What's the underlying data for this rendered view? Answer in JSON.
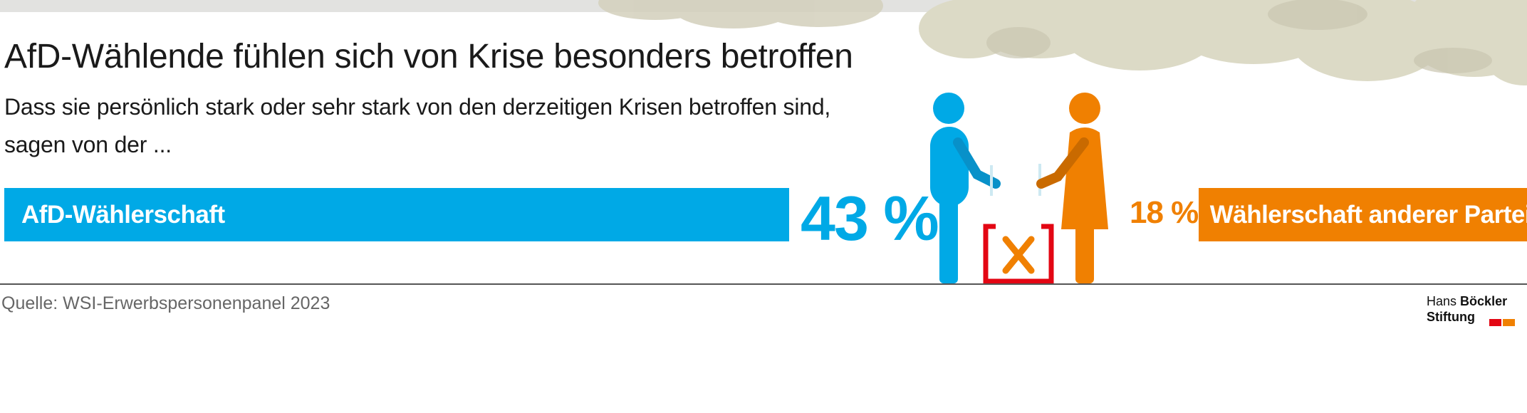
{
  "header": {
    "title": "AfD-Wählende fühlen sich von Krise besonders betroffen",
    "subtitle": "Dass sie persönlich stark oder sehr stark von den derzeitigen Krisen betroffen sind, sagen von der ..."
  },
  "footer": {
    "source": "Quelle: WSI-Erwerbspersonenpanel 2023",
    "logo_line1_a": "Hans",
    "logo_line1_b": "Böckler",
    "logo_line2": "Stiftung"
  },
  "colors": {
    "afd": "#00a9e6",
    "other": "#f08001",
    "ballot_box": "#e30613",
    "cloud": "#dcdac6"
  },
  "chart_data": {
    "type": "bar",
    "title": "AfD-Wählende fühlen sich von Krise besonders betroffen",
    "subtitle": "Dass sie persönlich stark oder sehr stark von den derzeitigen Krisen betroffen sind, sagen von der ...",
    "unit": "%",
    "categories": [
      "AfD-Wählerschaft",
      "Wählerschaft anderer Parteien"
    ],
    "values": [
      43,
      18
    ],
    "value_labels": [
      "43 %",
      "18 %"
    ],
    "colors": [
      "#00a9e6",
      "#f08001"
    ],
    "source": "Quelle: WSI-Erwerbspersonenpanel 2023"
  }
}
